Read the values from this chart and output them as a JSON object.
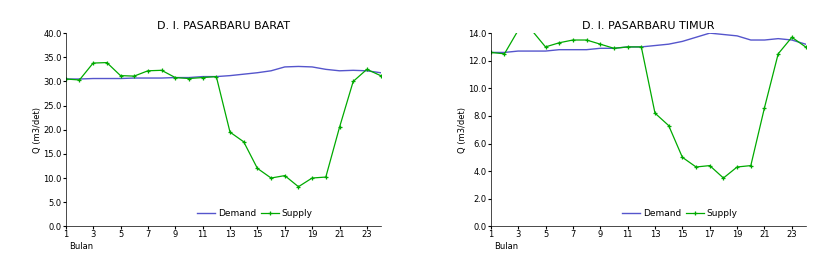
{
  "left": {
    "title": "D. I. PASARBARU BARAT",
    "ylabel": "Q (m3/det)",
    "ylim": [
      0,
      40
    ],
    "yticks": [
      0.0,
      5.0,
      10.0,
      15.0,
      20.0,
      25.0,
      30.0,
      35.0,
      40.0
    ],
    "demand_x": [
      1,
      2,
      3,
      4,
      5,
      6,
      7,
      8,
      9,
      10,
      11,
      12,
      13,
      14,
      15,
      16,
      17,
      18,
      19,
      20,
      21,
      22,
      23,
      24
    ],
    "demand_y": [
      30.5,
      30.5,
      30.6,
      30.6,
      30.6,
      30.7,
      30.7,
      30.7,
      30.8,
      30.8,
      31.0,
      31.0,
      31.2,
      31.5,
      31.8,
      32.2,
      33.0,
      33.1,
      33.0,
      32.5,
      32.2,
      32.3,
      32.2,
      31.8
    ],
    "supply_x": [
      1,
      2,
      3,
      4,
      5,
      6,
      7,
      8,
      9,
      10,
      11,
      12,
      13,
      14,
      15,
      16,
      17,
      18,
      19,
      20,
      21,
      22,
      23,
      24
    ],
    "supply_y": [
      30.5,
      30.3,
      33.8,
      33.9,
      31.2,
      31.1,
      32.2,
      32.3,
      30.8,
      30.6,
      30.8,
      31.0,
      19.5,
      17.5,
      12.0,
      10.0,
      10.5,
      8.2,
      10.0,
      10.2,
      20.5,
      30.0,
      32.5,
      31.2
    ]
  },
  "right": {
    "title": "D. I. PASARBARU TIMUR",
    "ylabel": "Q (m3/det)",
    "ylim": [
      0,
      14
    ],
    "yticks": [
      0.0,
      2.0,
      4.0,
      6.0,
      8.0,
      10.0,
      12.0,
      14.0
    ],
    "demand_x": [
      1,
      2,
      3,
      4,
      5,
      6,
      7,
      8,
      9,
      10,
      11,
      12,
      13,
      14,
      15,
      16,
      17,
      18,
      19,
      20,
      21,
      22,
      23,
      24
    ],
    "demand_y": [
      12.6,
      12.6,
      12.7,
      12.7,
      12.7,
      12.8,
      12.8,
      12.8,
      12.9,
      12.9,
      13.0,
      13.0,
      13.1,
      13.2,
      13.4,
      13.7,
      14.0,
      13.9,
      13.8,
      13.5,
      13.5,
      13.6,
      13.5,
      13.2
    ],
    "supply_x": [
      1,
      2,
      3,
      4,
      5,
      6,
      7,
      8,
      9,
      10,
      11,
      12,
      13,
      14,
      15,
      16,
      17,
      18,
      19,
      20,
      21,
      22,
      23,
      24
    ],
    "supply_y": [
      12.6,
      12.5,
      14.2,
      14.2,
      13.0,
      13.3,
      13.5,
      13.5,
      13.2,
      12.9,
      13.0,
      13.0,
      8.2,
      7.3,
      5.0,
      4.3,
      4.4,
      3.5,
      4.3,
      4.4,
      8.6,
      12.5,
      13.7,
      13.0
    ]
  },
  "xticks": [
    1,
    3,
    5,
    7,
    9,
    11,
    13,
    15,
    17,
    19,
    21,
    23
  ],
  "xlim": [
    1,
    24
  ],
  "xlabel": "Bulan",
  "demand_color": "#5555cc",
  "supply_color": "#00aa00",
  "background_color": "#ffffff",
  "title_fontsize": 8,
  "axis_fontsize": 6,
  "tick_fontsize": 6,
  "legend_fontsize": 6.5
}
